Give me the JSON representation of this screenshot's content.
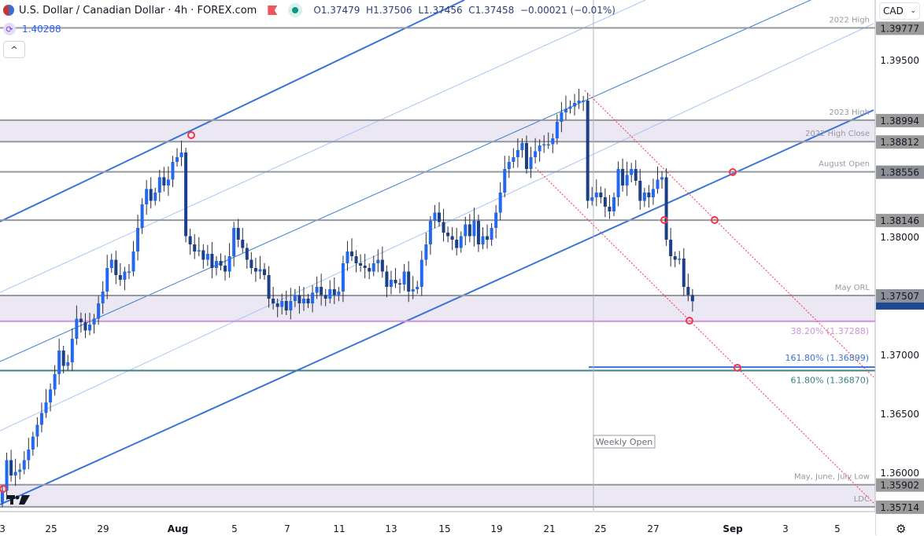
{
  "header": {
    "symbol_title": "U.S. Dollar / Canadian Dollar · 4h · FOREX.com",
    "ohlc": {
      "open": "O1.37479",
      "high": "H1.37506",
      "low": "L1.37456",
      "close": "C1.37458",
      "change": "−0.00021 (−0.01%)"
    },
    "indicator_value": "1.40288",
    "collapse_label": "^",
    "currency": "CAD"
  },
  "colors": {
    "up": "#2268f0",
    "down": "#1b3f88",
    "channel": "#3a73d8",
    "channel_light": "#a9c4f5",
    "level": "#9598a1",
    "zone": "#ebe8f3",
    "fib38": "#ce93d8",
    "fib161": "#3a73d8",
    "fib61": "#3f7f86",
    "marker": "#f23645"
  },
  "chart_data": {
    "type": "candlestick",
    "symbol": "USD/CAD",
    "timeframe": "4h",
    "ylim": [
      1.3565,
      1.4018
    ],
    "y_ticks": [
      "1.39500",
      "1.38000",
      "1.37000",
      "1.36500",
      "1.36000"
    ],
    "x_ticks": [
      "3",
      "25",
      "29",
      "Aug",
      "5",
      "7",
      "11",
      "13",
      "15",
      "19",
      "21",
      "25",
      "27",
      "Sep",
      "3",
      "5"
    ],
    "first_open": 1.3575,
    "closes": [
      1.3585,
      1.3611,
      1.3598,
      1.3601,
      1.3603,
      1.3611,
      1.362,
      1.3631,
      1.3641,
      1.3651,
      1.366,
      1.3671,
      1.3684,
      1.3704,
      1.3691,
      1.3694,
      1.3714,
      1.3731,
      1.3728,
      1.3721,
      1.3726,
      1.3731,
      1.3744,
      1.3754,
      1.3774,
      1.3781,
      1.3768,
      1.3764,
      1.3771,
      1.3771,
      1.3788,
      1.3808,
      1.3828,
      1.3841,
      1.3831,
      1.3838,
      1.3851,
      1.3844,
      1.3849,
      1.3864,
      1.3868,
      1.3872,
      1.3801,
      1.3794,
      1.3788,
      1.3789,
      1.3781,
      1.3786,
      1.3774,
      1.378,
      1.3776,
      1.3771,
      1.3784,
      1.3808,
      1.3798,
      1.3791,
      1.3781,
      1.3774,
      1.3771,
      1.3773,
      1.3768,
      1.3748,
      1.3744,
      1.3741,
      1.3746,
      1.3738,
      1.3746,
      1.3751,
      1.3744,
      1.3748,
      1.3744,
      1.3753,
      1.3758,
      1.3751,
      1.3748,
      1.3756,
      1.3751,
      1.3754,
      1.3778,
      1.3788,
      1.3784,
      1.3778,
      1.3776,
      1.3774,
      1.3771,
      1.3778,
      1.3781,
      1.3771,
      1.3758,
      1.3764,
      1.3761,
      1.376,
      1.3771,
      1.3754,
      1.3756,
      1.3758,
      1.3781,
      1.3794,
      1.3814,
      1.3821,
      1.3813,
      1.3804,
      1.3801,
      1.3798,
      1.3791,
      1.3801,
      1.3811,
      1.3801,
      1.3814,
      1.3794,
      1.3801,
      1.3798,
      1.3808,
      1.3821,
      1.3838,
      1.3858,
      1.3864,
      1.3868,
      1.3874,
      1.388,
      1.3858,
      1.3868,
      1.3873,
      1.3878,
      1.3879,
      1.3879,
      1.3884,
      1.3898,
      1.3906,
      1.3909,
      1.3911,
      1.3914,
      1.3916,
      1.3916,
      1.3831,
      1.3834,
      1.3838,
      1.3834,
      1.3826,
      1.3822,
      1.3834,
      1.3858,
      1.3844,
      1.3853,
      1.3858,
      1.3848,
      1.3831,
      1.3838,
      1.3834,
      1.3841,
      1.3849,
      1.3851,
      1.3798,
      1.3784,
      1.3781,
      1.3782,
      1.3758,
      1.3751,
      1.37458
    ],
    "levels": [
      {
        "price": 1.39777,
        "label": "2022 High",
        "tag": "1.39777"
      },
      {
        "price": 1.38994,
        "label": "2023 High",
        "tag": "1.38994"
      },
      {
        "price": 1.38812,
        "label": "2022 High Close",
        "tag": "1.38812"
      },
      {
        "price": 1.38556,
        "label": "August Open",
        "tag": "1.38556"
      },
      {
        "price": 1.38146,
        "label": "",
        "tag": "1.38146"
      },
      {
        "price": 1.37507,
        "label": "May ORL",
        "tag": "1.37507"
      },
      {
        "price": 1.35902,
        "label": "May, June, July Low",
        "tag": "1.35902"
      },
      {
        "price": 1.35714,
        "label": "LDC",
        "tag": "1.35714"
      }
    ],
    "zones": [
      [
        1.38812,
        1.38994
      ],
      [
        1.37288,
        1.37507
      ],
      [
        1.35714,
        1.35902
      ]
    ],
    "fib_levels": [
      {
        "price": 1.37288,
        "label": "38.20% (1.37288)",
        "color": "#ce93d8"
      },
      {
        "price": 1.36899,
        "label": "161.80% (1.36899)",
        "color": "#3a73d8"
      },
      {
        "price": 1.3687,
        "label": "61.80% (1.36870)",
        "color": "#3f7f86"
      }
    ],
    "last_price": 1.37458,
    "annotation": "Weekly Open"
  },
  "footer": {
    "settings_icon": "gear-icon"
  }
}
